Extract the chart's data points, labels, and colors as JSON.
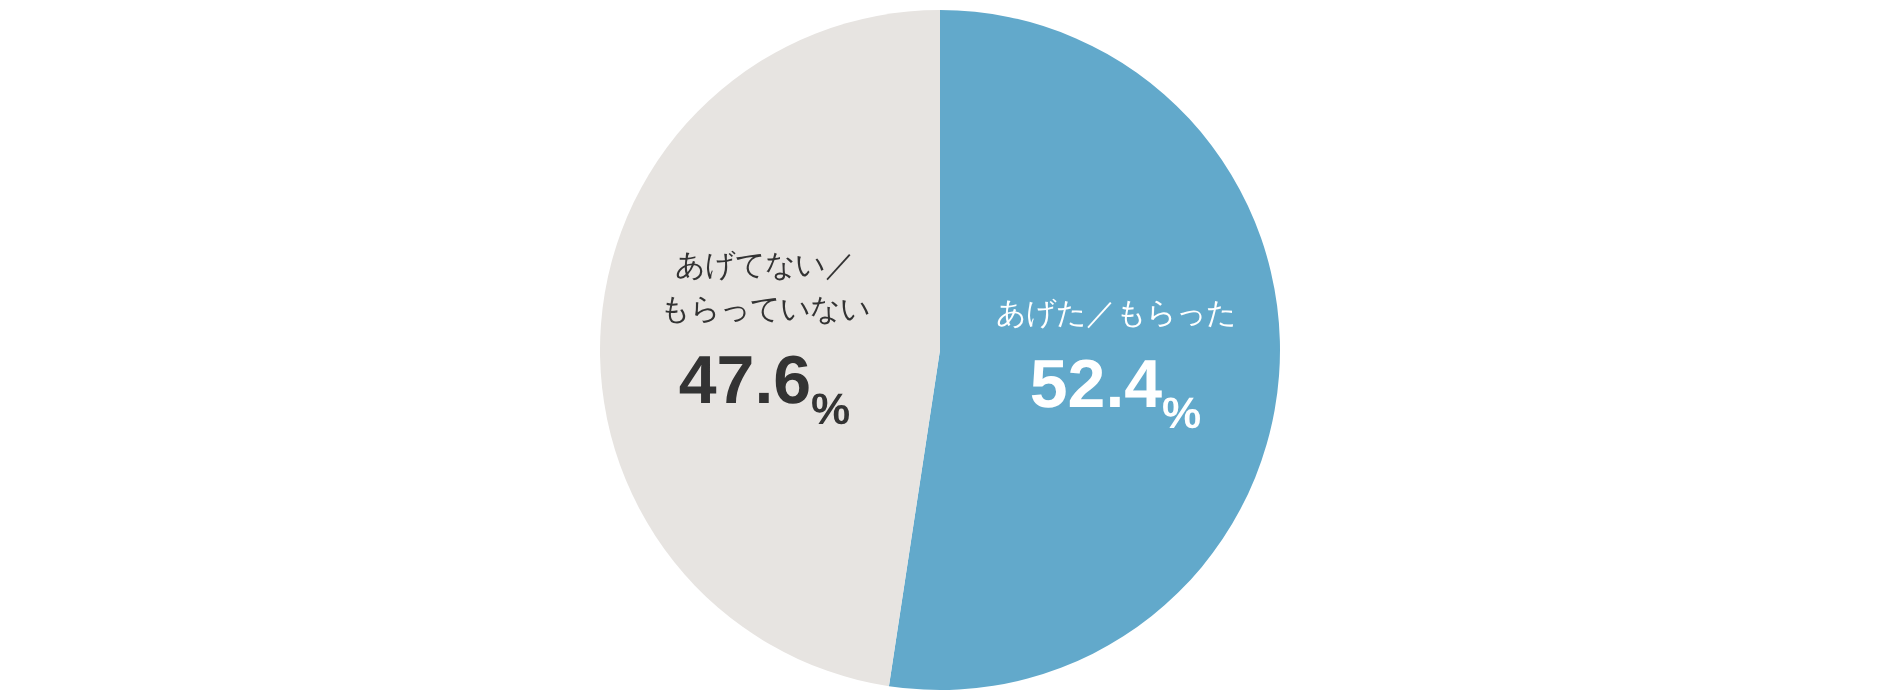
{
  "chart_data": {
    "type": "pie",
    "categories": [
      "あげた／もらった",
      "あげてない／もらっていない"
    ],
    "values": [
      52.4,
      47.6
    ],
    "colors": [
      "#62a9cb",
      "#e7e4e1"
    ],
    "value_labels": [
      "52.4%",
      "47.6%"
    ],
    "legend": false
  }
}
